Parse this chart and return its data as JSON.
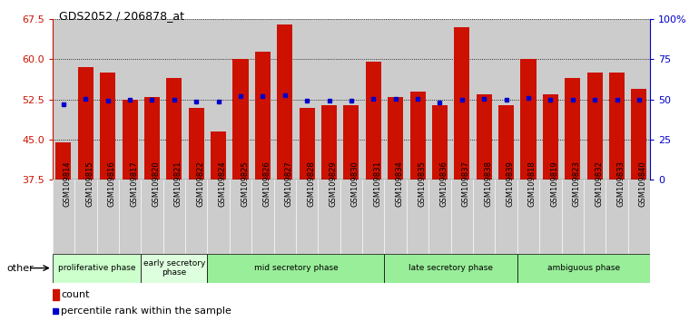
{
  "title": "GDS2052 / 206878_at",
  "samples": [
    "GSM109814",
    "GSM109815",
    "GSM109816",
    "GSM109817",
    "GSM109820",
    "GSM109821",
    "GSM109822",
    "GSM109824",
    "GSM109825",
    "GSM109826",
    "GSM109827",
    "GSM109828",
    "GSM109829",
    "GSM109830",
    "GSM109831",
    "GSM109834",
    "GSM109835",
    "GSM109836",
    "GSM109837",
    "GSM109838",
    "GSM109839",
    "GSM109818",
    "GSM109819",
    "GSM109823",
    "GSM109832",
    "GSM109833",
    "GSM109840"
  ],
  "count_values": [
    44.5,
    58.5,
    57.5,
    52.5,
    53.0,
    56.5,
    51.0,
    46.5,
    60.0,
    61.5,
    66.5,
    51.0,
    51.5,
    51.5,
    59.5,
    53.0,
    54.0,
    51.5,
    66.0,
    53.5,
    51.5,
    60.0,
    53.5,
    56.5,
    57.5,
    57.5,
    54.5
  ],
  "percentile_values": [
    47.0,
    50.5,
    49.5,
    50.0,
    50.0,
    50.0,
    49.0,
    49.0,
    52.0,
    52.0,
    52.5,
    49.5,
    49.5,
    49.5,
    50.5,
    50.5,
    50.5,
    48.0,
    50.0,
    50.5,
    50.0,
    51.0,
    50.0,
    50.0,
    50.0,
    50.0,
    50.0
  ],
  "phase_data": [
    {
      "label": "proliferative phase",
      "start": 0,
      "end": 4,
      "color": "#ccffcc"
    },
    {
      "label": "early secretory\nphase",
      "start": 4,
      "end": 7,
      "color": "#ddffdd"
    },
    {
      "label": "mid secretory phase",
      "start": 7,
      "end": 15,
      "color": "#99ee99"
    },
    {
      "label": "late secretory phase",
      "start": 15,
      "end": 21,
      "color": "#99ee99"
    },
    {
      "label": "ambiguous phase",
      "start": 21,
      "end": 27,
      "color": "#99ee99"
    }
  ],
  "ylim_left": [
    37.5,
    67.5
  ],
  "yticks_left": [
    37.5,
    45.0,
    52.5,
    60.0,
    67.5
  ],
  "yticks_right_vals": [
    0,
    25,
    50,
    75,
    100
  ],
  "yticks_right_labels": [
    "0",
    "25",
    "50",
    "75",
    "100%"
  ],
  "bar_color": "#cc1100",
  "blue_color": "#0000cc",
  "col_bg_color": "#cccccc",
  "left_axis_color": "#cc1100",
  "right_axis_color": "#0000cc"
}
